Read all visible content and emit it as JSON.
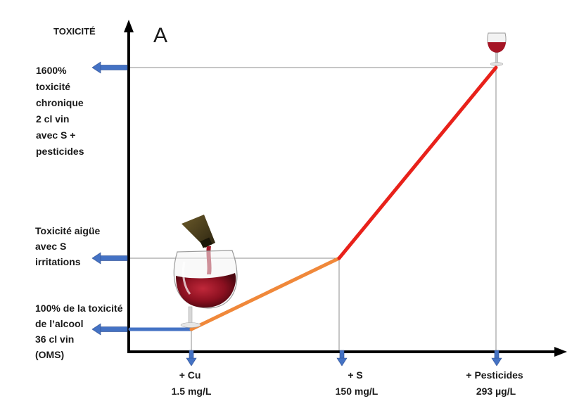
{
  "chart_data": {
    "type": "line",
    "panel_label": "A",
    "ylabel": "TOXICITÉ",
    "x_ticks": [
      {
        "line1": "+ Cu",
        "line2": "1.5 mg/L"
      },
      {
        "line1": "+ S",
        "line2": "150 mg/L"
      },
      {
        "line1": "+ Pesticides",
        "line2": "293 µg/L"
      }
    ],
    "y_annotations": [
      {
        "lines": [
          "100% de la toxicité",
          "de l’alcool",
          "36 cl vin",
          "(OMS)"
        ],
        "value": 100
      },
      {
        "lines": [
          "Toxicité aigüe",
          "avec S",
          "irritations"
        ],
        "value": 400
      },
      {
        "lines": [
          "1600%",
          "toxicité",
          "chronique",
          "2 cl vin",
          "avec S +",
          "pesticides"
        ],
        "value": 1600
      }
    ],
    "segments": [
      {
        "color": "#4472c4",
        "from": [
          0,
          100
        ],
        "to": [
          1,
          100
        ]
      },
      {
        "color": "#f0883a",
        "from": [
          1,
          100
        ],
        "to": [
          2,
          400
        ]
      },
      {
        "color": "#e8211a",
        "from": [
          2,
          400
        ],
        "to": [
          3,
          1600
        ]
      }
    ],
    "x_levels": [
      0,
      1,
      2,
      3
    ],
    "y_range": [
      0,
      1800
    ],
    "grid": false,
    "colors": {
      "axis": "#000000",
      "arrow": "#4472c4",
      "guide": "#8c8c8c",
      "wine": "#8b1020"
    },
    "icons": [
      "wine-bottle-pouring-icon",
      "wine-glass-icon",
      "small-wine-glass-icon"
    ]
  }
}
